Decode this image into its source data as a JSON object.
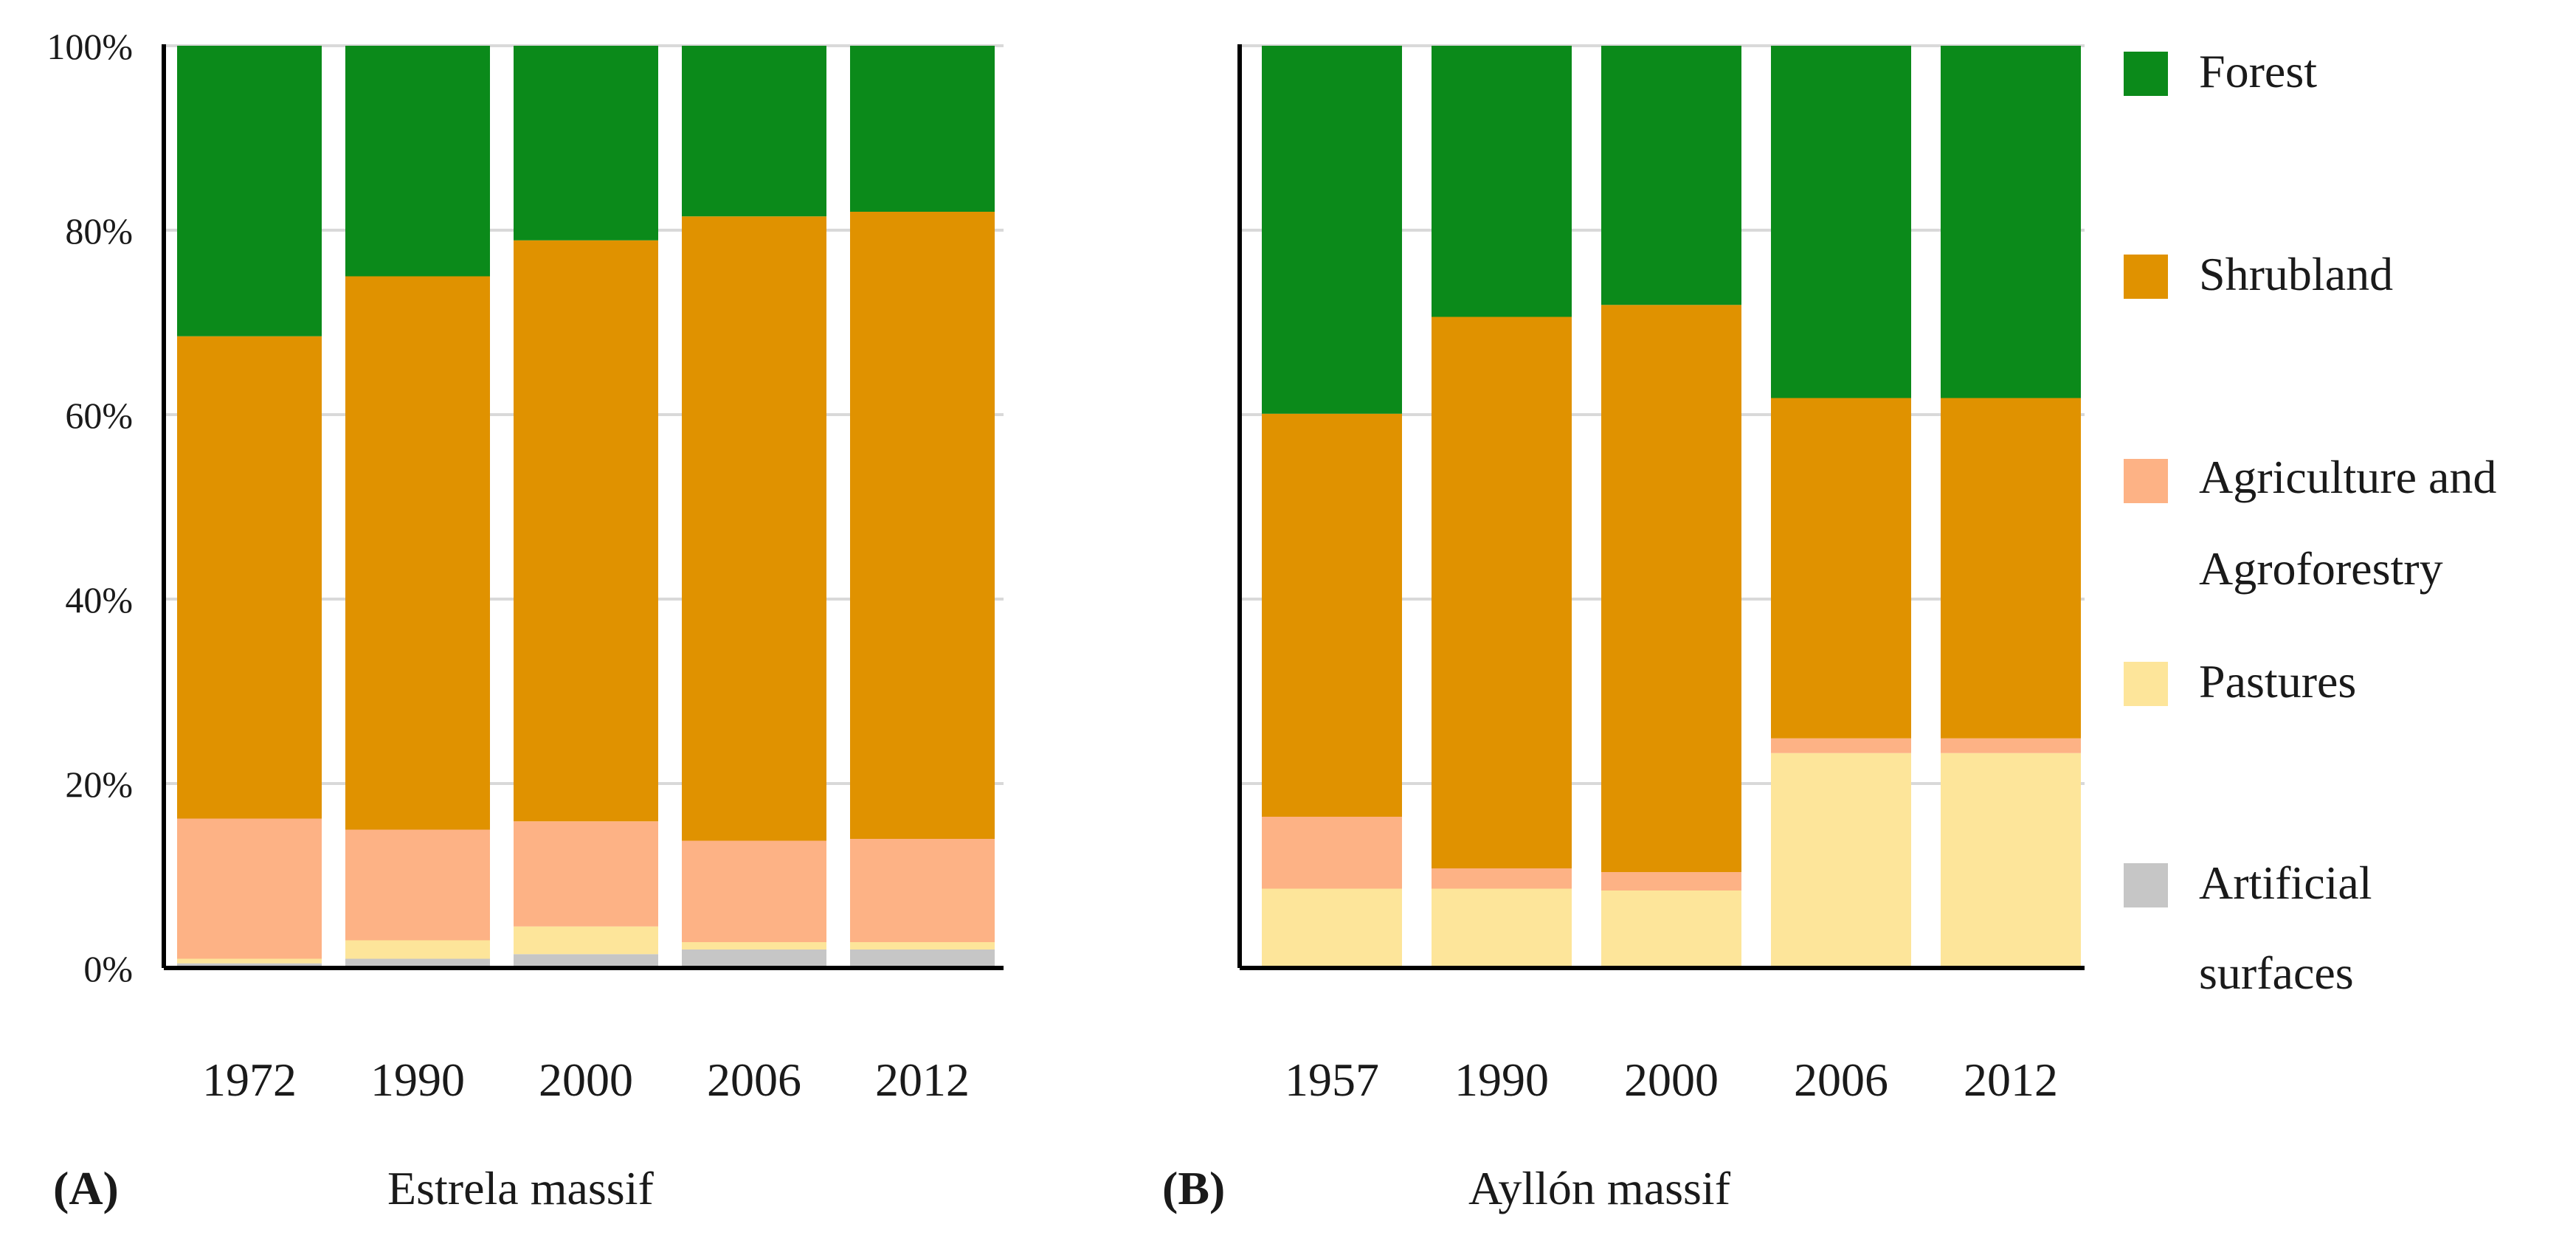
{
  "chart_data": [
    {
      "type": "bar",
      "stacked": true,
      "normalized": true,
      "panel_label": "(A)",
      "title": "Estrela massif",
      "categories": [
        "1972",
        "1990",
        "2000",
        "2006",
        "2012"
      ],
      "series": [
        {
          "name": "Artificial surfaces",
          "values": [
            0.5,
            1.0,
            1.5,
            2.0,
            2.0
          ]
        },
        {
          "name": "Pastures",
          "values": [
            0.5,
            2.0,
            3.0,
            0.8,
            0.8
          ]
        },
        {
          "name": "Agriculture and Agroforestry",
          "values": [
            15.2,
            12.0,
            11.4,
            11.0,
            11.2
          ]
        },
        {
          "name": "Shrubland",
          "values": [
            52.3,
            60.0,
            63.0,
            67.7,
            68.0
          ]
        },
        {
          "name": "Forest",
          "values": [
            31.5,
            25.0,
            21.1,
            18.5,
            18.0
          ]
        }
      ],
      "yticks": [
        "0%",
        "20%",
        "40%",
        "60%",
        "80%",
        "100%"
      ],
      "ylim": [
        0,
        100
      ],
      "grid": true
    },
    {
      "type": "bar",
      "stacked": true,
      "normalized": true,
      "panel_label": "(B)",
      "title": "Ayllón massif",
      "categories": [
        "1957",
        "1990",
        "2000",
        "2006",
        "2012"
      ],
      "series": [
        {
          "name": "Artificial surfaces",
          "values": [
            0,
            0,
            0,
            0,
            0
          ]
        },
        {
          "name": "Pastures",
          "values": [
            8.6,
            8.6,
            8.4,
            23.3,
            23.3
          ]
        },
        {
          "name": "Agriculture and Agroforestry",
          "values": [
            7.8,
            2.2,
            2.0,
            1.6,
            1.6
          ]
        },
        {
          "name": "Shrubland",
          "values": [
            43.7,
            59.8,
            61.5,
            36.9,
            36.9
          ]
        },
        {
          "name": "Forest",
          "values": [
            39.9,
            29.4,
            28.1,
            38.2,
            38.2
          ]
        }
      ],
      "ylim": [
        0,
        100
      ],
      "grid": true
    }
  ],
  "legend": {
    "position": "right",
    "items": [
      {
        "lines": [
          "Forest"
        ],
        "color": "#0b8a1a"
      },
      {
        "lines": [
          "Shrubland"
        ],
        "color": "#e09200"
      },
      {
        "lines": [
          "Agriculture and",
          "Agroforestry"
        ],
        "color": "#fdb285"
      },
      {
        "lines": [
          "Pastures"
        ],
        "color": "#fde59a"
      },
      {
        "lines": [
          "Artificial",
          "surfaces"
        ],
        "color": "#c6c6c6"
      }
    ]
  },
  "colors": {
    "Forest": "#0b8a1a",
    "Shrubland": "#e09200",
    "Agriculture and Agroforestry": "#fdb285",
    "Pastures": "#fde59a",
    "Artificial surfaces": "#c6c6c6",
    "grid": "#d9d9d9",
    "axis": "#000000"
  }
}
